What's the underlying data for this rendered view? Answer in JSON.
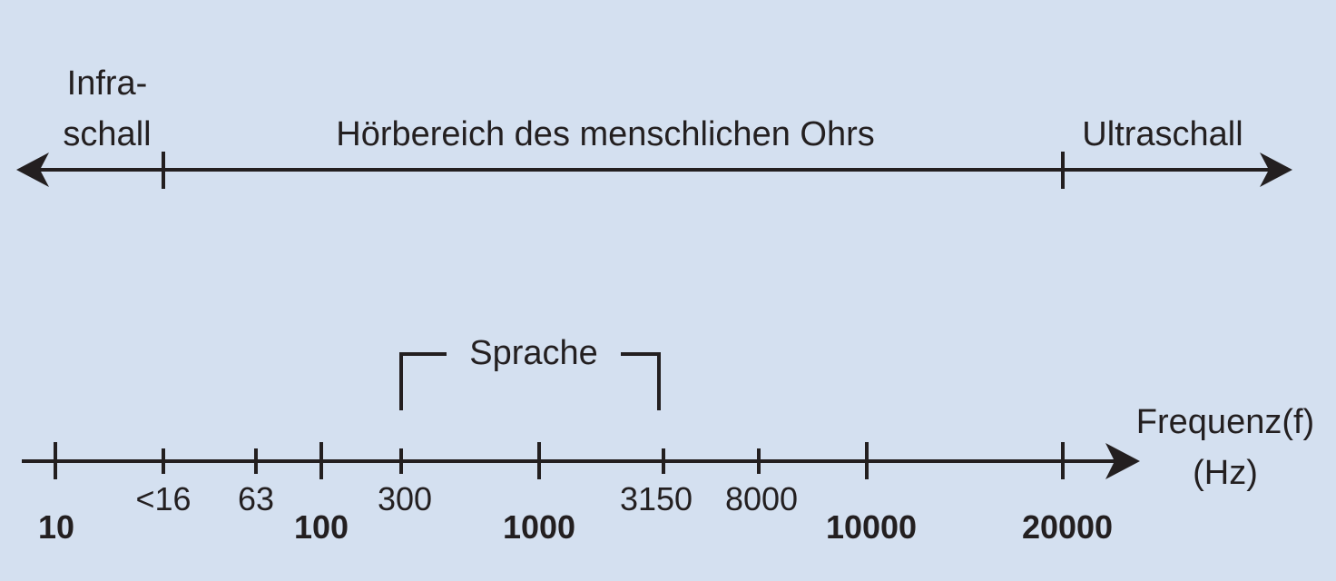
{
  "colors": {
    "background": "#d4e0f0",
    "ink": "#231f20"
  },
  "ranges": {
    "infra": "Infra-\nschall",
    "infra_line1": "Infra-",
    "infra_line2": "schall",
    "audible": "Hörbereich des menschlichen Ohrs",
    "ultra": "Ultraschall"
  },
  "speech": {
    "label": "Sprache",
    "from_hz": 300,
    "to_hz": 3150
  },
  "axis": {
    "label_line1": "Frequenz(f)",
    "label_line2": "(Hz)",
    "major_ticks": [
      "10",
      "100",
      "1000",
      "10000",
      "20000"
    ],
    "minor_ticks": [
      "<16",
      "63",
      "300",
      "3150",
      "8000"
    ]
  },
  "boundaries_hz": [
    16,
    20000
  ]
}
